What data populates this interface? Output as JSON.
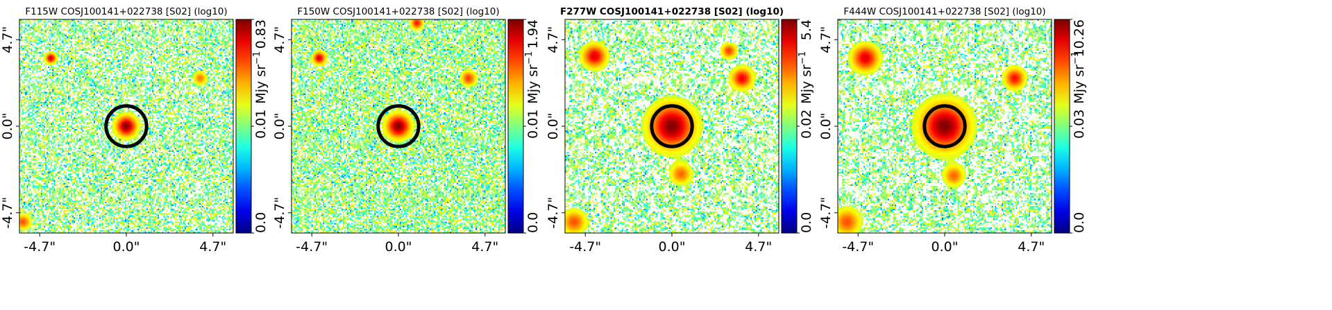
{
  "chart_data": [
    {
      "type": "heatmap",
      "title": "F115W COSJ100141+022738 [S02] (log10)",
      "title_bold": false,
      "x_ticks": [
        "-4.7\"",
        "0.0\"",
        "4.7\""
      ],
      "y_ticks": [
        "4.7\"",
        "0.0\"",
        "-4.7\""
      ],
      "xlim": [
        -5.8,
        5.8
      ],
      "ylim": [
        -5.8,
        5.8
      ],
      "colorbar": {
        "label": "Mjy sr",
        "label_sup": "−1",
        "ticks": [
          "0.0",
          "0.01",
          "0.83"
        ],
        "range": [
          0.0,
          0.83
        ]
      },
      "aperture": {
        "x": 0.0,
        "y": 0.0,
        "radius": 1.1
      },
      "noise": {
        "density": 0.55,
        "blob": 1.0
      },
      "sources": [
        {
          "x": -4.1,
          "y": 3.7,
          "amp": 0.85,
          "sigma": 0.18
        },
        {
          "x": 4.0,
          "y": 2.6,
          "amp": 0.45,
          "sigma": 0.22
        },
        {
          "x": -5.6,
          "y": -5.2,
          "amp": 0.55,
          "sigma": 0.25
        },
        {
          "x": 0.0,
          "y": 0.0,
          "amp": 1.0,
          "sigma": 0.35
        }
      ]
    },
    {
      "type": "heatmap",
      "title": "F150W COSJ100141+022738 [S02] (log10)",
      "title_bold": false,
      "x_ticks": [
        "-4.7\"",
        "0.0\"",
        "4.7\""
      ],
      "y_ticks": [
        "4.7\"",
        "0.0\"",
        "-4.7\""
      ],
      "xlim": [
        -5.8,
        5.8
      ],
      "ylim": [
        -5.8,
        5.8
      ],
      "colorbar": {
        "label": "Mjy sr",
        "label_sup": "−1",
        "ticks": [
          "0.0",
          "0.01",
          "1.94"
        ],
        "range": [
          0.0,
          1.94
        ]
      },
      "aperture": {
        "x": 0.0,
        "y": 0.0,
        "radius": 1.1
      },
      "noise": {
        "density": 0.6,
        "blob": 1.0
      },
      "sources": [
        {
          "x": -4.3,
          "y": 3.7,
          "amp": 0.8,
          "sigma": 0.22
        },
        {
          "x": 3.8,
          "y": 2.6,
          "amp": 0.6,
          "sigma": 0.25
        },
        {
          "x": 1.0,
          "y": 5.6,
          "amp": 0.7,
          "sigma": 0.2
        },
        {
          "x": 0.0,
          "y": 0.0,
          "amp": 1.0,
          "sigma": 0.4
        }
      ]
    },
    {
      "type": "heatmap",
      "title": "F277W COSJ100141+022738 [S02] (log10)",
      "title_bold": true,
      "x_ticks": [
        "-4.7\"",
        "0.0\"",
        "4.7\""
      ],
      "y_ticks": [
        "4.7\"",
        "0.0\"",
        "-4.7\""
      ],
      "xlim": [
        -5.8,
        5.8
      ],
      "ylim": [
        -5.8,
        5.8
      ],
      "colorbar": {
        "label": "Mjy sr",
        "label_sup": "−1",
        "ticks": [
          "0.0",
          "0.02",
          "5.4"
        ],
        "range": [
          0.0,
          5.4
        ]
      },
      "aperture": {
        "x": 0.0,
        "y": 0.0,
        "radius": 1.1
      },
      "noise": {
        "density": 0.5,
        "blob": 2.2
      },
      "sources": [
        {
          "x": -4.2,
          "y": 3.8,
          "amp": 0.8,
          "sigma": 0.4
        },
        {
          "x": 3.8,
          "y": 2.6,
          "amp": 0.75,
          "sigma": 0.35
        },
        {
          "x": 3.1,
          "y": 4.1,
          "amp": 0.6,
          "sigma": 0.25
        },
        {
          "x": 0.5,
          "y": -2.6,
          "amp": 0.5,
          "sigma": 0.35
        },
        {
          "x": -5.3,
          "y": -5.2,
          "amp": 0.55,
          "sigma": 0.4
        },
        {
          "x": 0.0,
          "y": 0.0,
          "amp": 1.0,
          "sigma": 0.75
        }
      ]
    },
    {
      "type": "heatmap",
      "title": "F444W COSJ100141+022738 [S02] (log10)",
      "title_bold": false,
      "x_ticks": [
        "-4.7\"",
        "0.0\"",
        "4.7\""
      ],
      "y_ticks": [
        "4.7\"",
        "0.0\"",
        "-4.7\""
      ],
      "xlim": [
        -5.8,
        5.8
      ],
      "ylim": [
        -5.8,
        5.8
      ],
      "colorbar": {
        "label": "Mjy sr",
        "label_sup": "−1",
        "ticks": [
          "0.0",
          "0.03",
          "10.26"
        ],
        "range": [
          0.0,
          10.26
        ]
      },
      "aperture": {
        "x": 0.0,
        "y": 0.0,
        "radius": 1.1
      },
      "noise": {
        "density": 0.5,
        "blob": 2.4
      },
      "sources": [
        {
          "x": -4.3,
          "y": 3.7,
          "amp": 0.8,
          "sigma": 0.45
        },
        {
          "x": 3.8,
          "y": 2.6,
          "amp": 0.7,
          "sigma": 0.35
        },
        {
          "x": 0.5,
          "y": -2.7,
          "amp": 0.5,
          "sigma": 0.35
        },
        {
          "x": -5.3,
          "y": -5.2,
          "amp": 0.55,
          "sigma": 0.45
        },
        {
          "x": 0.0,
          "y": 0.0,
          "amp": 1.0,
          "sigma": 0.8
        }
      ]
    }
  ]
}
